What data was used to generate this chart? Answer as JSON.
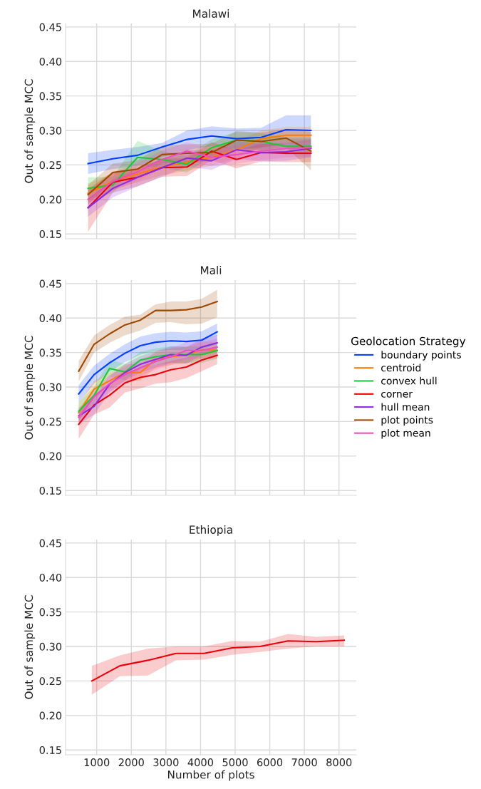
{
  "chart_data": [
    {
      "type": "line",
      "title": "Malawi",
      "ylabel": "Out of sample MCC",
      "xlim": [
        100,
        8500
      ],
      "ylim": [
        0.143,
        0.455
      ],
      "xticks": [
        1000,
        2000,
        3000,
        4000,
        5000,
        6000,
        7000,
        8000
      ],
      "yticks": [
        {
          "value": 0.15,
          "label": "0.15"
        },
        {
          "value": 0.2,
          "label": "0.20"
        },
        {
          "value": 0.25,
          "label": "0.25"
        },
        {
          "value": 0.3,
          "label": "0.30"
        },
        {
          "value": 0.35,
          "label": "0.35"
        },
        {
          "value": 0.4,
          "label": "0.40"
        },
        {
          "value": 0.45,
          "label": "0.45"
        }
      ],
      "tick_labels": "y",
      "grid": true,
      "x": [
        750,
        1465,
        2180,
        2890,
        3610,
        4320,
        5040,
        5750,
        6470,
        7190
      ],
      "series": [
        {
          "color": "#023eff",
          "values": [
            0.252,
            0.259,
            0.264,
            0.276,
            0.287,
            0.292,
            0.288,
            0.29,
            0.301,
            0.3
          ],
          "lower": [
            0.237,
            0.244,
            0.249,
            0.261,
            0.272,
            0.277,
            0.273,
            0.275,
            0.28,
            0.279
          ],
          "upper": [
            0.267,
            0.272,
            0.276,
            0.282,
            0.3,
            0.306,
            0.303,
            0.304,
            0.322,
            0.322
          ]
        },
        {
          "color": "#ff7c00",
          "values": [
            0.209,
            0.226,
            0.237,
            0.247,
            0.254,
            0.261,
            0.272,
            0.288,
            0.293,
            0.293
          ],
          "lower": [
            0.195,
            0.214,
            0.225,
            0.235,
            0.242,
            0.249,
            0.26,
            0.276,
            0.281,
            0.281
          ],
          "upper": [
            0.223,
            0.238,
            0.249,
            0.259,
            0.266,
            0.273,
            0.284,
            0.3,
            0.305,
            0.305
          ]
        },
        {
          "color": "#1ac938",
          "values": [
            0.216,
            0.221,
            0.261,
            0.258,
            0.251,
            0.275,
            0.286,
            0.284,
            0.277,
            0.277
          ],
          "lower": [
            0.2,
            0.209,
            0.249,
            0.246,
            0.239,
            0.263,
            0.274,
            0.272,
            0.265,
            0.265
          ],
          "upper": [
            0.232,
            0.233,
            0.285,
            0.27,
            0.263,
            0.287,
            0.298,
            0.296,
            0.289,
            0.289
          ]
        },
        {
          "color": "#e8000b",
          "values": [
            0.188,
            0.225,
            0.232,
            0.246,
            0.247,
            0.27,
            0.258,
            0.268,
            0.267,
            0.267
          ],
          "lower": [
            0.153,
            0.21,
            0.219,
            0.233,
            0.234,
            0.257,
            0.245,
            0.255,
            0.254,
            0.254
          ],
          "upper": [
            0.215,
            0.24,
            0.245,
            0.259,
            0.26,
            0.283,
            0.271,
            0.281,
            0.28,
            0.28
          ]
        },
        {
          "color": "#8b2be2",
          "values": [
            0.188,
            0.216,
            0.232,
            0.246,
            0.26,
            0.256,
            0.272,
            0.268,
            0.269,
            0.274
          ],
          "lower": [
            0.175,
            0.203,
            0.219,
            0.233,
            0.247,
            0.243,
            0.259,
            0.255,
            0.256,
            0.261
          ],
          "upper": [
            0.201,
            0.229,
            0.245,
            0.259,
            0.273,
            0.269,
            0.285,
            0.281,
            0.282,
            0.287
          ]
        },
        {
          "color": "#9f4800",
          "values": [
            0.207,
            0.239,
            0.244,
            0.265,
            0.267,
            0.268,
            0.286,
            0.284,
            0.289,
            0.27
          ],
          "lower": [
            0.193,
            0.226,
            0.231,
            0.252,
            0.254,
            0.255,
            0.273,
            0.271,
            0.276,
            0.242
          ],
          "upper": [
            0.221,
            0.252,
            0.257,
            0.278,
            0.28,
            0.281,
            0.299,
            0.297,
            0.302,
            0.298
          ]
        },
        {
          "color": "#f14cc1",
          "values": [
            0.2,
            0.226,
            0.24,
            0.258,
            0.27,
            0.261,
            0.265,
            0.27,
            0.274,
            0.275
          ],
          "lower": [
            0.187,
            0.213,
            0.227,
            0.245,
            0.257,
            0.248,
            0.252,
            0.257,
            0.261,
            0.262
          ],
          "upper": [
            0.213,
            0.239,
            0.253,
            0.271,
            0.283,
            0.274,
            0.278,
            0.283,
            0.287,
            0.288
          ]
        }
      ]
    },
    {
      "type": "line",
      "title": "Mali",
      "ylabel": "Out of sample MCC",
      "legend_title": "Geolocation Strategy",
      "legend": "right",
      "xlim": [
        100,
        8500
      ],
      "ylim": [
        0.143,
        0.455
      ],
      "xticks": [
        1000,
        2000,
        3000,
        4000,
        5000,
        6000,
        7000,
        8000
      ],
      "yticks": [
        {
          "value": 0.15,
          "label": "0.15"
        },
        {
          "value": 0.2,
          "label": "0.20"
        },
        {
          "value": 0.25,
          "label": "0.25"
        },
        {
          "value": 0.3,
          "label": "0.30"
        },
        {
          "value": 0.35,
          "label": "0.35"
        },
        {
          "value": 0.4,
          "label": "0.40"
        },
        {
          "value": 0.45,
          "label": "0.45"
        }
      ],
      "tick_labels": "y",
      "grid": true,
      "x": [
        480,
        925,
        1370,
        1815,
        2260,
        2700,
        3145,
        3590,
        4035,
        4480
      ],
      "series": [
        {
          "name": "boundary points",
          "color": "#023eff",
          "values": [
            0.29,
            0.318,
            0.335,
            0.349,
            0.36,
            0.365,
            0.367,
            0.366,
            0.368,
            0.38
          ],
          "lower": [
            0.277,
            0.305,
            0.322,
            0.336,
            0.347,
            0.352,
            0.354,
            0.353,
            0.355,
            0.362
          ],
          "upper": [
            0.303,
            0.331,
            0.348,
            0.362,
            0.373,
            0.378,
            0.38,
            0.379,
            0.381,
            0.392
          ]
        },
        {
          "name": "centroid",
          "color": "#ff7c00",
          "values": [
            0.263,
            0.297,
            0.309,
            0.321,
            0.321,
            0.34,
            0.344,
            0.346,
            0.354,
            0.353
          ],
          "lower": [
            0.25,
            0.285,
            0.297,
            0.309,
            0.309,
            0.328,
            0.332,
            0.334,
            0.342,
            0.341
          ],
          "upper": [
            0.276,
            0.309,
            0.321,
            0.333,
            0.333,
            0.352,
            0.356,
            0.358,
            0.366,
            0.365
          ]
        },
        {
          "name": "convex hull",
          "color": "#1ac938",
          "values": [
            0.265,
            0.288,
            0.327,
            0.322,
            0.339,
            0.344,
            0.347,
            0.347,
            0.347,
            0.353
          ],
          "lower": [
            0.252,
            0.276,
            0.315,
            0.31,
            0.327,
            0.332,
            0.335,
            0.335,
            0.335,
            0.341
          ],
          "upper": [
            0.278,
            0.3,
            0.339,
            0.334,
            0.351,
            0.356,
            0.359,
            0.359,
            0.359,
            0.365
          ]
        },
        {
          "name": "corner",
          "color": "#e8000b",
          "values": [
            0.246,
            0.274,
            0.288,
            0.306,
            0.314,
            0.318,
            0.325,
            0.329,
            0.339,
            0.346
          ],
          "lower": [
            0.225,
            0.26,
            0.27,
            0.292,
            0.298,
            0.305,
            0.307,
            0.313,
            0.323,
            0.333
          ],
          "upper": [
            0.262,
            0.29,
            0.302,
            0.32,
            0.328,
            0.332,
            0.338,
            0.343,
            0.352,
            0.36
          ]
        },
        {
          "name": "hull mean",
          "color": "#8b2be2",
          "values": [
            0.258,
            0.272,
            0.304,
            0.321,
            0.333,
            0.34,
            0.347,
            0.346,
            0.358,
            0.364
          ],
          "lower": [
            0.246,
            0.26,
            0.292,
            0.309,
            0.321,
            0.328,
            0.335,
            0.334,
            0.346,
            0.352
          ],
          "upper": [
            0.27,
            0.284,
            0.316,
            0.333,
            0.345,
            0.352,
            0.359,
            0.358,
            0.37,
            0.376
          ]
        },
        {
          "name": "plot points",
          "color": "#9f4800",
          "values": [
            0.323,
            0.362,
            0.377,
            0.39,
            0.397,
            0.411,
            0.411,
            0.412,
            0.416,
            0.424
          ],
          "lower": [
            0.308,
            0.35,
            0.364,
            0.375,
            0.382,
            0.393,
            0.394,
            0.391,
            0.392,
            0.401
          ],
          "upper": [
            0.338,
            0.375,
            0.39,
            0.402,
            0.405,
            0.42,
            0.424,
            0.424,
            0.428,
            0.441
          ]
        },
        {
          "name": "plot mean",
          "color": "#f14cc1",
          "values": [
            0.256,
            0.286,
            0.305,
            0.318,
            0.328,
            0.337,
            0.344,
            0.353,
            0.353,
            0.358
          ],
          "lower": [
            0.244,
            0.274,
            0.293,
            0.306,
            0.316,
            0.325,
            0.332,
            0.341,
            0.341,
            0.346
          ],
          "upper": [
            0.268,
            0.298,
            0.317,
            0.33,
            0.34,
            0.349,
            0.356,
            0.365,
            0.365,
            0.37
          ]
        }
      ]
    },
    {
      "type": "line",
      "title": "Ethiopia",
      "ylabel": "Out of sample MCC",
      "xlabel": "Number of plots",
      "xlim": [
        100,
        8500
      ],
      "ylim": [
        0.143,
        0.455
      ],
      "xticks": [
        1000,
        2000,
        3000,
        4000,
        5000,
        6000,
        7000,
        8000
      ],
      "yticks": [
        {
          "value": 0.15,
          "label": "0.15"
        },
        {
          "value": 0.2,
          "label": "0.20"
        },
        {
          "value": 0.25,
          "label": "0.25"
        },
        {
          "value": 0.3,
          "label": "0.30"
        },
        {
          "value": 0.35,
          "label": "0.35"
        },
        {
          "value": 0.4,
          "label": "0.40"
        },
        {
          "value": 0.45,
          "label": "0.45"
        }
      ],
      "grid": true,
      "x": [
        860,
        1670,
        2480,
        3290,
        4100,
        4910,
        5720,
        6530,
        7340,
        8150
      ],
      "series": [
        {
          "color": "#e8000b",
          "values": [
            0.25,
            0.272,
            0.28,
            0.29,
            0.29,
            0.298,
            0.3,
            0.308,
            0.307,
            0.309
          ],
          "lower": [
            0.23,
            0.257,
            0.258,
            0.28,
            0.281,
            0.288,
            0.292,
            0.297,
            0.3,
            0.3
          ],
          "upper": [
            0.272,
            0.287,
            0.297,
            0.3,
            0.3,
            0.308,
            0.307,
            0.318,
            0.314,
            0.316
          ]
        }
      ]
    }
  ]
}
